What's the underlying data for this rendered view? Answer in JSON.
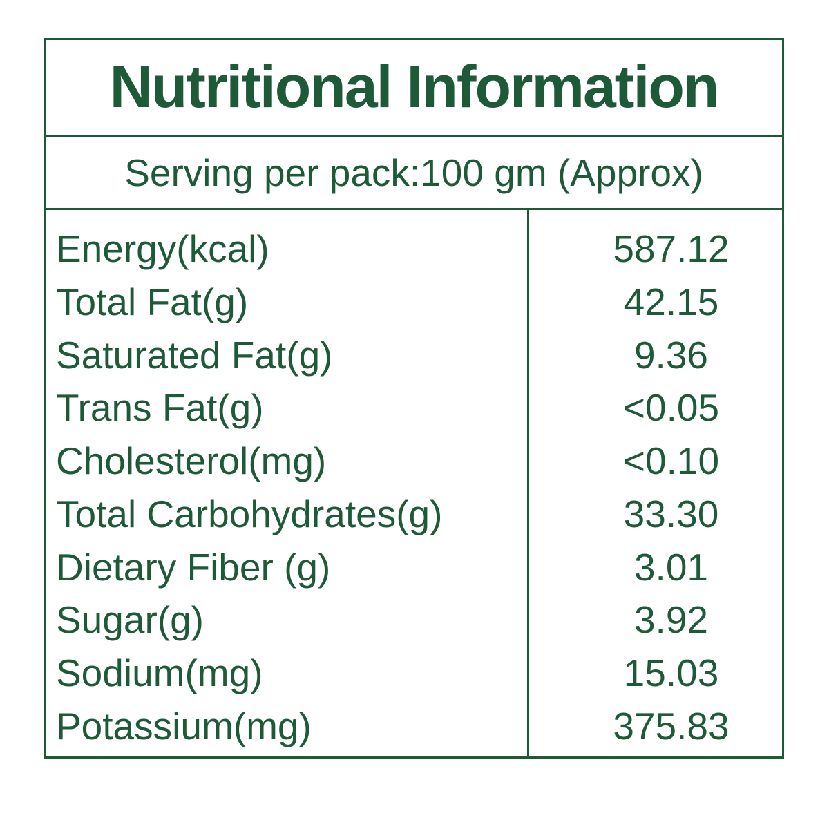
{
  "title": "Nutritional Information",
  "serving": {
    "text": "Serving per pack:100 gm (Approx)"
  },
  "colors": {
    "green": "#1e5a38",
    "background": "#ffffff"
  },
  "table": {
    "rows": [
      {
        "label": "Energy(kcal)",
        "value": "587.12"
      },
      {
        "label": "Total Fat(g)",
        "value": "42.15"
      },
      {
        "label": "Saturated Fat(g)",
        "value": "9.36"
      },
      {
        "label": "Trans Fat(g)",
        "value": "<0.05"
      },
      {
        "label": "Cholesterol(mg)",
        "value": "<0.10"
      },
      {
        "label": "Total Carbohydrates(g)",
        "value": "33.30"
      },
      {
        "label": "Dietary Fiber (g)",
        "value": "3.01"
      },
      {
        "label": "Sugar(g)",
        "value": "3.92"
      },
      {
        "label": "Sodium(mg)",
        "value": "15.03"
      },
      {
        "label": "Potassium(mg)",
        "value": "375.83"
      }
    ]
  }
}
